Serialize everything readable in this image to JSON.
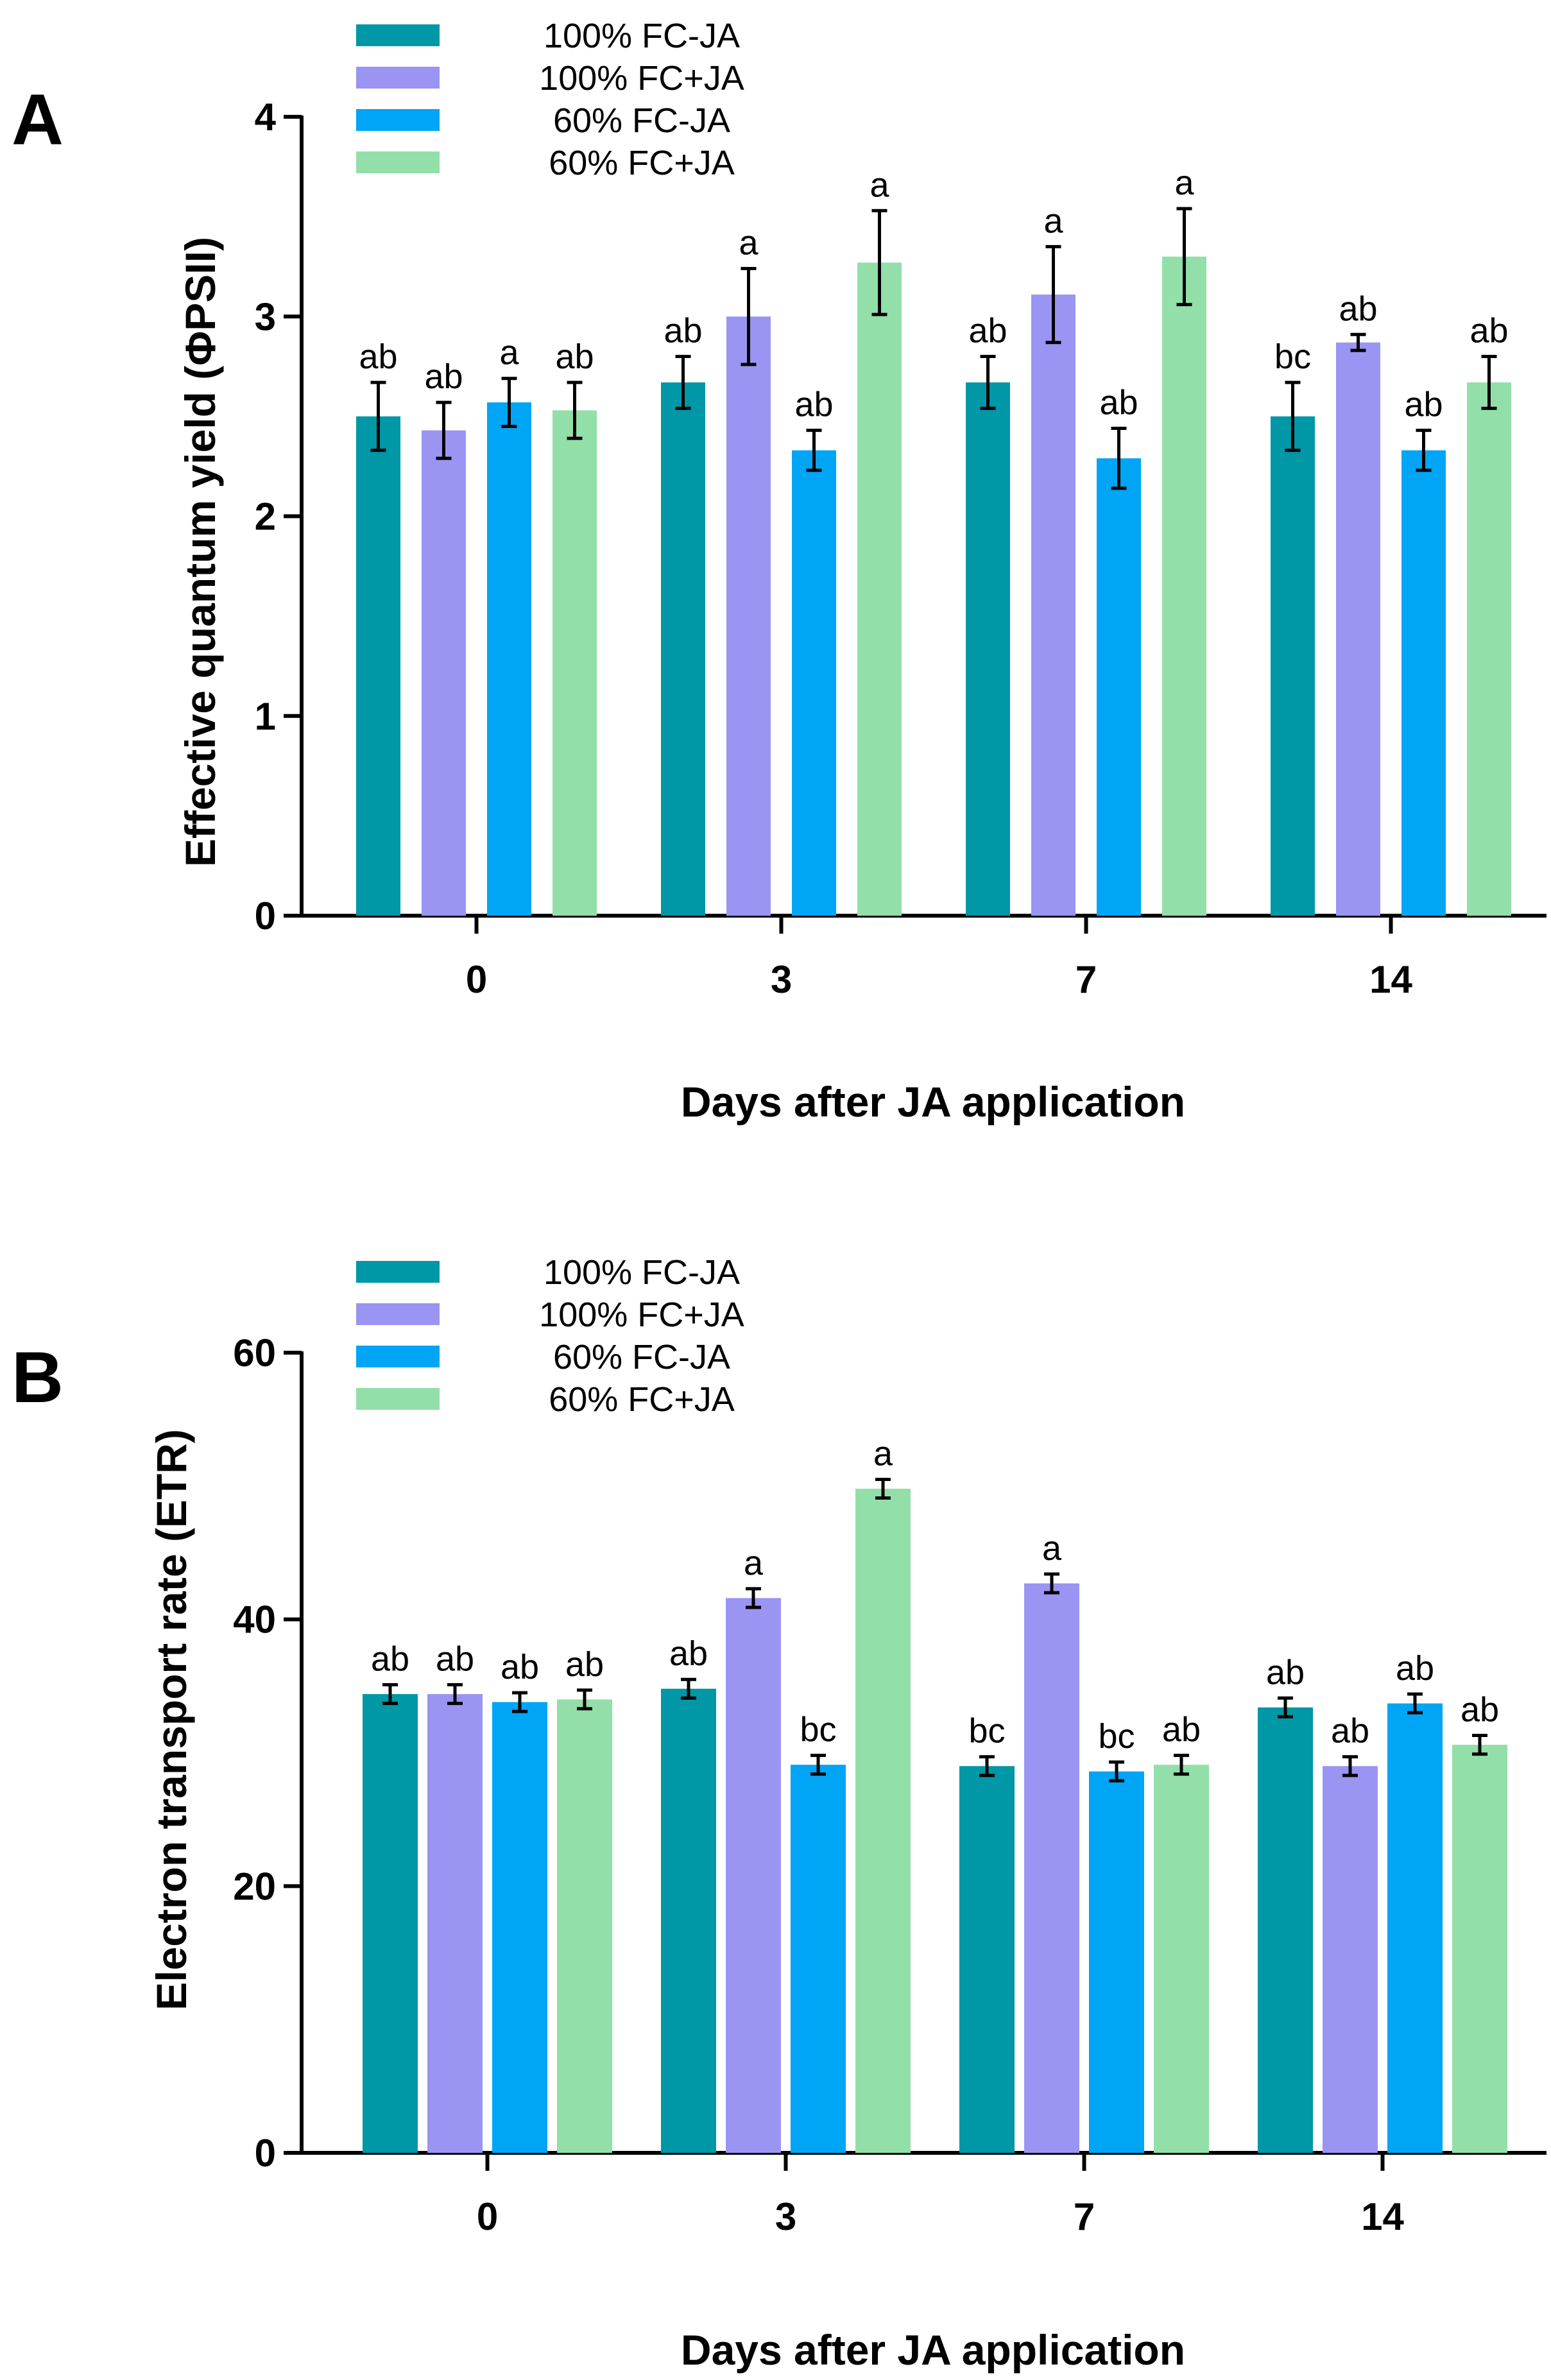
{
  "chart_data": [
    {
      "type": "bar",
      "panel_label": "A",
      "ylabel": "Effective quantum yield (ΦPSII)",
      "xlabel": "Days after JA application",
      "categories": [
        "0",
        "3",
        "7",
        "14"
      ],
      "ylim": [
        0,
        4
      ],
      "yticks": [
        0,
        1,
        2,
        3,
        4
      ],
      "legend_position": "top-left",
      "series": [
        {
          "name": "100% FC-JA",
          "color": "#0097A7",
          "values": [
            2.5,
            2.67,
            2.67,
            2.5
          ],
          "errors": [
            0.17,
            0.13,
            0.13,
            0.17
          ],
          "letters": [
            "ab",
            "ab",
            "ab",
            "bc"
          ]
        },
        {
          "name": "100% FC+JA",
          "color": "#9A95F2",
          "values": [
            2.43,
            3.0,
            3.11,
            2.87
          ],
          "errors": [
            0.14,
            0.24,
            0.24,
            0.04
          ],
          "letters": [
            "ab",
            "a",
            "a",
            "ab"
          ]
        },
        {
          "name": "60% FC-JA",
          "color": "#00A5F5",
          "values": [
            2.57,
            2.33,
            2.29,
            2.33
          ],
          "errors": [
            0.12,
            0.1,
            0.15,
            0.1
          ],
          "letters": [
            "a",
            "ab",
            "ab",
            "ab"
          ]
        },
        {
          "name": "60% FC+JA",
          "color": "#93DFA9",
          "values": [
            2.53,
            3.27,
            3.3,
            2.67
          ],
          "errors": [
            0.14,
            0.26,
            0.24,
            0.13
          ],
          "letters": [
            "ab",
            "a",
            "a",
            "ab"
          ]
        }
      ]
    },
    {
      "type": "bar",
      "panel_label": "B",
      "ylabel": "Electron transport rate (ETR)",
      "xlabel": "Days after JA application",
      "categories": [
        "0",
        "3",
        "7",
        "14"
      ],
      "ylim": [
        0,
        60
      ],
      "yticks": [
        0,
        20,
        40,
        60
      ],
      "legend_position": "top-left",
      "series": [
        {
          "name": "100% FC-JA",
          "color": "#0097A7",
          "values": [
            34.4,
            34.8,
            29.0,
            33.4
          ],
          "errors": [
            0.7,
            0.7,
            0.7,
            0.7
          ],
          "letters": [
            "ab",
            "ab",
            "bc",
            "ab"
          ]
        },
        {
          "name": "100% FC+JA",
          "color": "#9A95F2",
          "values": [
            34.4,
            41.6,
            42.7,
            29.0
          ],
          "errors": [
            0.7,
            0.7,
            0.7,
            0.7
          ],
          "letters": [
            "ab",
            "a",
            "a",
            "ab"
          ]
        },
        {
          "name": "60% FC-JA",
          "color": "#00A5F5",
          "values": [
            33.8,
            29.1,
            28.6,
            33.7
          ],
          "errors": [
            0.7,
            0.7,
            0.7,
            0.7
          ],
          "letters": [
            "ab",
            "bc",
            "bc",
            "ab"
          ]
        },
        {
          "name": "60% FC+JA",
          "color": "#93DFA9",
          "values": [
            34.0,
            49.8,
            29.1,
            30.6
          ],
          "errors": [
            0.7,
            0.7,
            0.7,
            0.7
          ],
          "letters": [
            "ab",
            "a",
            "ab",
            "ab"
          ]
        }
      ]
    }
  ]
}
